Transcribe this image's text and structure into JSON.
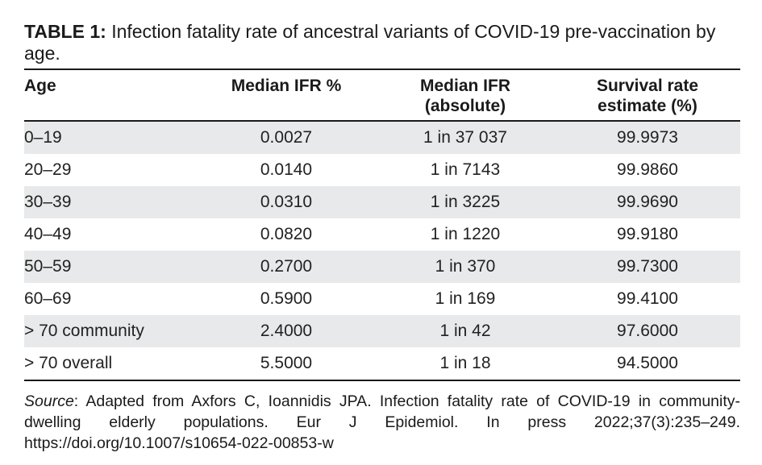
{
  "caption": {
    "label": "TABLE 1:",
    "text": "Infection fatality rate of ancestral variants of COVID-19 pre-vaccination by age."
  },
  "table": {
    "headers": {
      "age": "Age",
      "median_ifr_pct": "Median IFR %",
      "median_ifr_abs_line1": "Median IFR",
      "median_ifr_abs_line2": "(absolute)",
      "survival_line1": "Survival rate",
      "survival_line2": "estimate (%)"
    },
    "rows": [
      {
        "age": "0–19",
        "ifr_pct": "0.0027",
        "ifr_abs": "1 in 37 037",
        "survival": "99.9973"
      },
      {
        "age": "20–29",
        "ifr_pct": "0.0140",
        "ifr_abs": "1 in 7143",
        "survival": "99.9860"
      },
      {
        "age": "30–39",
        "ifr_pct": "0.0310",
        "ifr_abs": "1 in 3225",
        "survival": "99.9690"
      },
      {
        "age": "40–49",
        "ifr_pct": "0.0820",
        "ifr_abs": "1 in 1220",
        "survival": "99.9180"
      },
      {
        "age": "50–59",
        "ifr_pct": "0.2700",
        "ifr_abs": "1 in 370",
        "survival": "99.7300"
      },
      {
        "age": "60–69",
        "ifr_pct": "0.5900",
        "ifr_abs": "1 in 169",
        "survival": "99.4100"
      },
      {
        "age": "> 70 community",
        "ifr_pct": "2.4000",
        "ifr_abs": "1 in 42",
        "survival": "97.6000"
      },
      {
        "age": "> 70 overall",
        "ifr_pct": "5.5000",
        "ifr_abs": "1 in 18",
        "survival": "94.5000"
      }
    ]
  },
  "source": {
    "label": "Source",
    "text": ": Adapted from Axfors C, Ioannidis JPA. Infection fatality rate of COVID-19 in community-dwelling elderly populations. Eur J Epidemiol. In press 2022;37(3):235–249. https://doi.org/10.1007/s10654-022-00853-w"
  }
}
